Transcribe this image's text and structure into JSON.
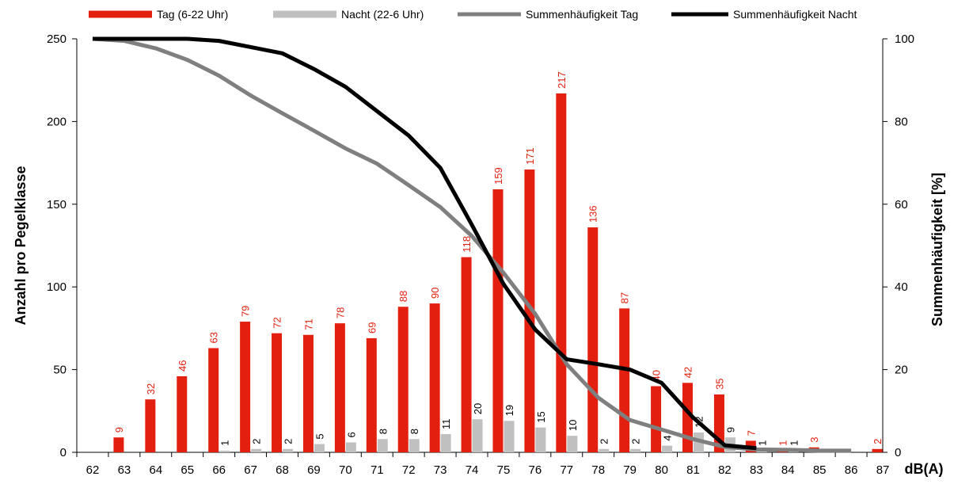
{
  "chart_data": {
    "type": "bar",
    "categories": [
      "62",
      "63",
      "64",
      "65",
      "66",
      "67",
      "68",
      "69",
      "70",
      "71",
      "72",
      "73",
      "74",
      "75",
      "76",
      "77",
      "78",
      "79",
      "80",
      "81",
      "82",
      "83",
      "84",
      "85",
      "86",
      "87"
    ],
    "series": [
      {
        "name": "Tag (6-22 Uhr)",
        "kind": "bar",
        "axis": "left",
        "color": "#e3200f",
        "values": [
          0,
          9,
          32,
          46,
          63,
          79,
          72,
          71,
          78,
          69,
          88,
          90,
          118,
          159,
          171,
          217,
          136,
          87,
          40,
          42,
          35,
          7,
          1,
          3,
          0,
          2
        ],
        "labels": [
          "",
          "9",
          "32",
          "46",
          "63",
          "79",
          "72",
          "71",
          "78",
          "69",
          "88",
          "90",
          "118",
          "159",
          "171",
          "217",
          "136",
          "87",
          "40",
          "42",
          "35",
          "7",
          "1",
          "3",
          "",
          "2"
        ]
      },
      {
        "name": "Nacht (22-6 Uhr)",
        "kind": "bar",
        "axis": "left",
        "color": "#c0c0c0",
        "values": [
          0,
          0,
          0,
          0,
          1,
          2,
          2,
          5,
          6,
          8,
          8,
          11,
          20,
          19,
          15,
          10,
          2,
          2,
          4,
          12,
          9,
          1,
          1,
          0,
          0,
          0
        ],
        "labels": [
          "",
          "",
          "",
          "",
          "1",
          "2",
          "2",
          "5",
          "6",
          "8",
          "8",
          "11",
          "20",
          "19",
          "15",
          "10",
          "2",
          "2",
          "4",
          "12",
          "9",
          "1",
          "1",
          "",
          "",
          ""
        ]
      },
      {
        "name": "Summenhäufigkeit Tag",
        "kind": "line",
        "axis": "right",
        "color": "#7f7f7f",
        "values": [
          100,
          99.5,
          97.7,
          94.9,
          91.1,
          86.3,
          82,
          77.8,
          73.5,
          69.8,
          64.6,
          59.3,
          52.3,
          43.4,
          33.5,
          21.3,
          13.2,
          7.8,
          5.5,
          3.2,
          1.3,
          0.7,
          0.6,
          0.4,
          0.4,
          null
        ]
      },
      {
        "name": "Summenhäufigkeit Nacht",
        "kind": "line",
        "axis": "right",
        "color": "#000000",
        "values": [
          100,
          100,
          100,
          100,
          99.5,
          98,
          96.5,
          92.7,
          88.4,
          82.5,
          76.6,
          68.8,
          55,
          40.7,
          29.7,
          22.5,
          21.3,
          20,
          16.8,
          8.4,
          1.7,
          1,
          null,
          null,
          null,
          null
        ]
      }
    ],
    "ylabel_left": "Anzahl pro Pegelklasse",
    "ylabel_right": "Summenhäufigkeit [%]",
    "xlabel": "dB(A)",
    "ylim_left": [
      0,
      250
    ],
    "yticks_left": [
      "0",
      "50",
      "100",
      "150",
      "200",
      "250"
    ],
    "ylim_right": [
      0,
      100
    ],
    "yticks_right": [
      "0",
      "20",
      "40",
      "60",
      "80",
      "100"
    ],
    "legend_position": "top",
    "grid": false
  }
}
